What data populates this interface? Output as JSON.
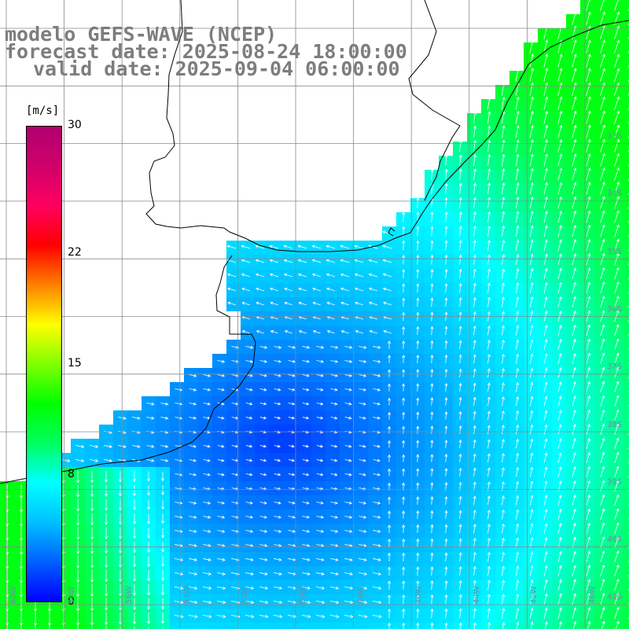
{
  "title": {
    "model": "modelo GEFS-WAVE (NCEP)",
    "forecast": "forecast date: 2025-08-24 18:00:00",
    "valid": "valid date: 2025-09-04 06:00:00"
  },
  "colorbar": {
    "unit": "[m/s]",
    "ticks": [
      "30",
      "22",
      "15",
      "8",
      "0"
    ],
    "tick_values": [
      30,
      22,
      15,
      8,
      0
    ],
    "min": 0,
    "max": 30,
    "colors": [
      "#0000ff",
      "#0060ff",
      "#00c0ff",
      "#00ffff",
      "#00ff60",
      "#00ff00",
      "#80ff00",
      "#ffff00",
      "#ff8000",
      "#ff0000",
      "#ff0060",
      "#d0006a",
      "#b00070"
    ]
  },
  "lon_labels": [
    "60W",
    "58W",
    "56W",
    "54W",
    "52W",
    "50W",
    "48W",
    "46W",
    "44W",
    "42W",
    "40W"
  ],
  "lat_labels": [
    "33S",
    "34S",
    "35S",
    "36S",
    "37S",
    "38S",
    "39S",
    "40S",
    "41S"
  ],
  "colors": {
    "land": "#ffffff",
    "grid": "#8a8a8a",
    "coast": "#000000",
    "arrow": "#ffffff",
    "title": "#7d7d7d"
  }
}
